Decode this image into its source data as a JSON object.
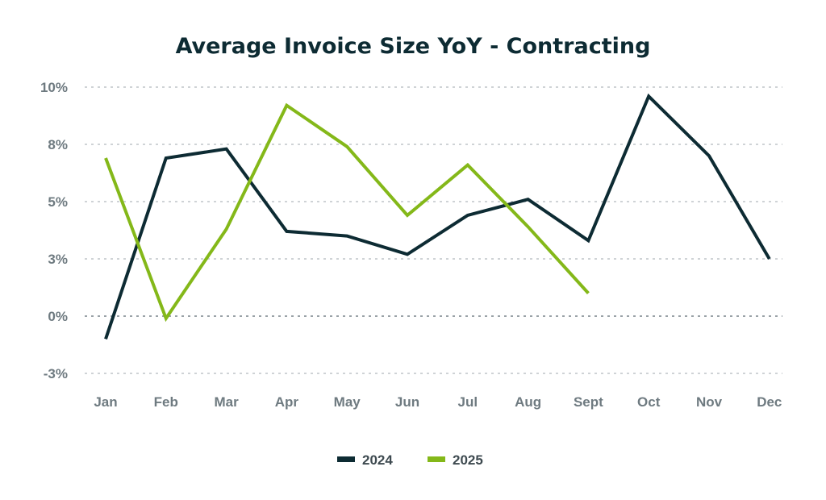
{
  "chart_data": {
    "type": "line",
    "title": "Average Invoice Size YoY - Contracting",
    "categories": [
      "Jan",
      "Feb",
      "Mar",
      "Apr",
      "May",
      "Jun",
      "Jul",
      "Aug",
      "Sept",
      "Oct",
      "Nov",
      "Dec"
    ],
    "y_ticks": [
      {
        "value": 10,
        "label": "10%"
      },
      {
        "value": 7.5,
        "label": "8%"
      },
      {
        "value": 5,
        "label": "5%"
      },
      {
        "value": 2.5,
        "label": "3%"
      },
      {
        "value": 0,
        "label": "0%"
      },
      {
        "value": -2.5,
        "label": "-3%"
      }
    ],
    "ylim": [
      -2.5,
      10
    ],
    "grid": true,
    "legend_position": "bottom-center",
    "series": [
      {
        "name": "2024",
        "color": "#0d2b33",
        "values": [
          -1.0,
          6.9,
          7.3,
          3.7,
          3.5,
          2.7,
          4.4,
          5.1,
          3.3,
          9.6,
          7.0,
          2.5
        ]
      },
      {
        "name": "2025",
        "color": "#84b819",
        "values": [
          6.9,
          -0.1,
          3.8,
          9.2,
          7.4,
          4.4,
          6.6,
          3.9,
          1.0,
          null,
          null,
          null
        ]
      }
    ]
  }
}
